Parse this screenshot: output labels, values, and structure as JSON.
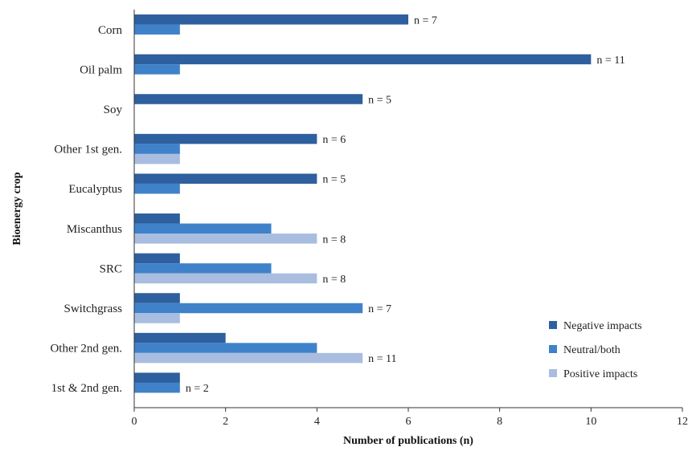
{
  "chart_data": {
    "type": "bar",
    "orientation": "horizontal",
    "title": "",
    "xlabel": "Number of publications (n)",
    "ylabel": "Bioenergy crop",
    "xlim": [
      0,
      12
    ],
    "xticks": [
      0,
      2,
      4,
      6,
      8,
      10,
      12
    ],
    "grid": false,
    "legend_position": "bottom-right",
    "categories": [
      "Corn",
      "Oil palm",
      "Soy",
      "Other 1st gen.",
      "Eucalyptus",
      "Miscanthus",
      "SRC",
      "Switchgrass",
      "Other 2nd gen.",
      "1st & 2nd gen."
    ],
    "series": [
      {
        "name": "Negative impacts",
        "color": "#2e5f9e",
        "values": [
          6,
          10,
          5,
          4,
          4,
          1,
          1,
          1,
          2,
          1
        ]
      },
      {
        "name": "Neutral/both",
        "color": "#3f82c9",
        "values": [
          1,
          1,
          0,
          1,
          1,
          3,
          3,
          5,
          4,
          1
        ]
      },
      {
        "name": "Positive impacts",
        "color": "#a9bde0",
        "values": [
          0,
          0,
          0,
          1,
          0,
          4,
          4,
          1,
          5,
          0
        ]
      }
    ],
    "annotations": [
      "n = 7",
      "n = 11",
      "n = 5",
      "n = 6",
      "n = 5",
      "n = 8",
      "n = 8",
      "n = 7",
      "n = 11",
      "n = 2"
    ]
  }
}
